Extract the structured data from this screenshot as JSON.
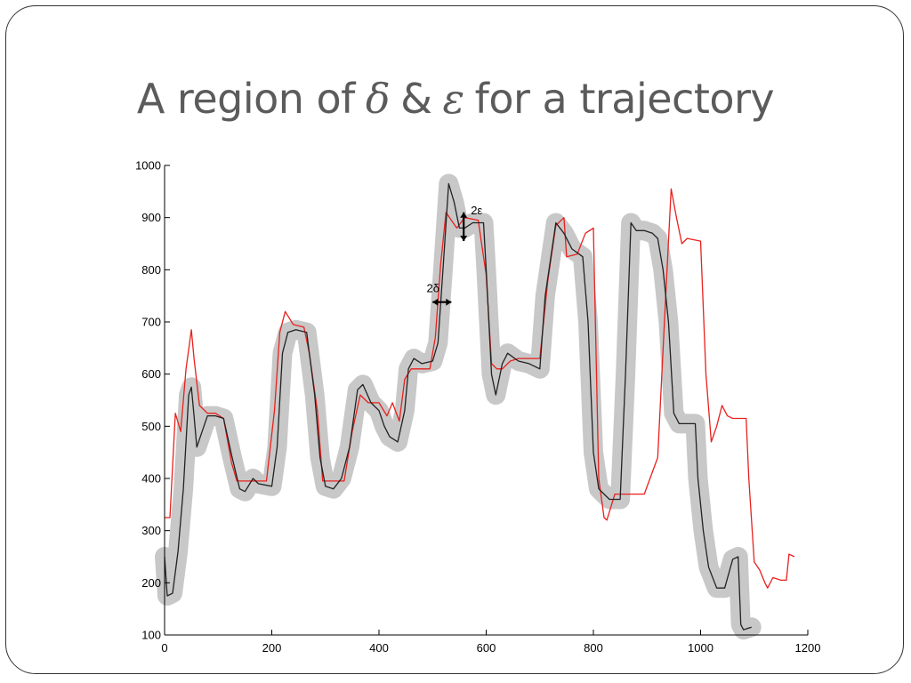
{
  "slide": {
    "title_prefix": "A region of",
    "title_delta": "δ",
    "title_amp": "&",
    "title_epsilon": "ε",
    "title_suffix": "for a trajectory"
  },
  "colors": {
    "band": "#c8c8c8",
    "black_series": "#222222",
    "red_series": "#e8211e",
    "annotation": "#000000"
  },
  "chart_data": {
    "type": "line",
    "title": "",
    "xlabel": "",
    "ylabel": "",
    "xlim": [
      0,
      1200
    ],
    "ylim": [
      100,
      1000
    ],
    "x_ticks": [
      0,
      200,
      400,
      600,
      800,
      1000,
      1200
    ],
    "y_ticks": [
      100,
      200,
      300,
      400,
      500,
      600,
      700,
      800,
      900,
      1000
    ],
    "grid": false,
    "series": [
      {
        "color": "#222222",
        "band_color": "#c8c8c8",
        "points": [
          [
            0,
            250
          ],
          [
            5,
            175
          ],
          [
            15,
            180
          ],
          [
            25,
            260
          ],
          [
            35,
            380
          ],
          [
            45,
            560
          ],
          [
            50,
            575
          ],
          [
            55,
            520
          ],
          [
            60,
            460
          ],
          [
            70,
            490
          ],
          [
            80,
            520
          ],
          [
            95,
            520
          ],
          [
            110,
            515
          ],
          [
            125,
            445
          ],
          [
            140,
            380
          ],
          [
            150,
            375
          ],
          [
            165,
            400
          ],
          [
            175,
            390
          ],
          [
            200,
            385
          ],
          [
            210,
            460
          ],
          [
            220,
            640
          ],
          [
            230,
            680
          ],
          [
            245,
            685
          ],
          [
            265,
            680
          ],
          [
            280,
            560
          ],
          [
            290,
            440
          ],
          [
            300,
            385
          ],
          [
            315,
            380
          ],
          [
            330,
            400
          ],
          [
            345,
            460
          ],
          [
            360,
            570
          ],
          [
            370,
            580
          ],
          [
            385,
            545
          ],
          [
            400,
            530
          ],
          [
            410,
            500
          ],
          [
            420,
            480
          ],
          [
            435,
            470
          ],
          [
            448,
            530
          ],
          [
            455,
            610
          ],
          [
            465,
            630
          ],
          [
            480,
            620
          ],
          [
            500,
            625
          ],
          [
            510,
            660
          ],
          [
            520,
            810
          ],
          [
            530,
            965
          ],
          [
            540,
            930
          ],
          [
            550,
            880
          ],
          [
            560,
            880
          ],
          [
            575,
            890
          ],
          [
            595,
            890
          ],
          [
            600,
            800
          ],
          [
            610,
            600
          ],
          [
            618,
            560
          ],
          [
            630,
            620
          ],
          [
            640,
            640
          ],
          [
            660,
            625
          ],
          [
            680,
            620
          ],
          [
            700,
            610
          ],
          [
            710,
            750
          ],
          [
            720,
            820
          ],
          [
            730,
            890
          ],
          [
            745,
            870
          ],
          [
            760,
            840
          ],
          [
            780,
            825
          ],
          [
            790,
            700
          ],
          [
            800,
            450
          ],
          [
            810,
            380
          ],
          [
            820,
            370
          ],
          [
            830,
            360
          ],
          [
            850,
            360
          ],
          [
            860,
            600
          ],
          [
            870,
            890
          ],
          [
            880,
            875
          ],
          [
            895,
            875
          ],
          [
            910,
            870
          ],
          [
            920,
            860
          ],
          [
            930,
            800
          ],
          [
            940,
            700
          ],
          [
            950,
            525
          ],
          [
            960,
            505
          ],
          [
            975,
            505
          ],
          [
            990,
            505
          ],
          [
            995,
            400
          ],
          [
            1005,
            300
          ],
          [
            1015,
            230
          ],
          [
            1030,
            190
          ],
          [
            1045,
            190
          ],
          [
            1060,
            245
          ],
          [
            1070,
            250
          ],
          [
            1075,
            120
          ],
          [
            1080,
            110
          ],
          [
            1095,
            115
          ]
        ]
      },
      {
        "color": "#e8211e",
        "points": [
          [
            0,
            325
          ],
          [
            10,
            325
          ],
          [
            20,
            525
          ],
          [
            30,
            490
          ],
          [
            40,
            610
          ],
          [
            50,
            685
          ],
          [
            55,
            630
          ],
          [
            65,
            540
          ],
          [
            80,
            525
          ],
          [
            95,
            525
          ],
          [
            110,
            515
          ],
          [
            125,
            430
          ],
          [
            135,
            395
          ],
          [
            160,
            395
          ],
          [
            190,
            395
          ],
          [
            205,
            530
          ],
          [
            215,
            680
          ],
          [
            225,
            720
          ],
          [
            240,
            695
          ],
          [
            260,
            690
          ],
          [
            270,
            640
          ],
          [
            285,
            530
          ],
          [
            295,
            395
          ],
          [
            320,
            395
          ],
          [
            335,
            395
          ],
          [
            350,
            490
          ],
          [
            365,
            560
          ],
          [
            380,
            545
          ],
          [
            400,
            545
          ],
          [
            415,
            520
          ],
          [
            425,
            545
          ],
          [
            438,
            510
          ],
          [
            448,
            590
          ],
          [
            460,
            610
          ],
          [
            495,
            610
          ],
          [
            505,
            670
          ],
          [
            515,
            810
          ],
          [
            525,
            910
          ],
          [
            535,
            895
          ],
          [
            545,
            880
          ],
          [
            560,
            900
          ],
          [
            585,
            895
          ],
          [
            600,
            790
          ],
          [
            610,
            620
          ],
          [
            620,
            610
          ],
          [
            630,
            610
          ],
          [
            645,
            625
          ],
          [
            660,
            630
          ],
          [
            700,
            630
          ],
          [
            715,
            780
          ],
          [
            730,
            885
          ],
          [
            745,
            900
          ],
          [
            750,
            825
          ],
          [
            770,
            830
          ],
          [
            785,
            870
          ],
          [
            800,
            880
          ],
          [
            810,
            400
          ],
          [
            820,
            325
          ],
          [
            825,
            320
          ],
          [
            840,
            370
          ],
          [
            870,
            370
          ],
          [
            880,
            370
          ],
          [
            895,
            370
          ],
          [
            920,
            440
          ],
          [
            935,
            750
          ],
          [
            945,
            955
          ],
          [
            955,
            900
          ],
          [
            965,
            850
          ],
          [
            975,
            860
          ],
          [
            1000,
            855
          ],
          [
            1010,
            600
          ],
          [
            1020,
            470
          ],
          [
            1030,
            500
          ],
          [
            1040,
            540
          ],
          [
            1050,
            520
          ],
          [
            1060,
            515
          ],
          [
            1085,
            515
          ],
          [
            1090,
            400
          ],
          [
            1100,
            240
          ],
          [
            1110,
            225
          ],
          [
            1120,
            200
          ],
          [
            1125,
            190
          ],
          [
            1135,
            210
          ],
          [
            1150,
            205
          ],
          [
            1160,
            205
          ],
          [
            1165,
            255
          ],
          [
            1175,
            250
          ]
        ]
      }
    ],
    "annotations": [
      {
        "label": "2δ",
        "type": "horizontal",
        "x": [
          500,
          535
        ],
        "y": 738
      },
      {
        "label": "2ε",
        "type": "vertical",
        "x": 558,
        "y": [
          855,
          910
        ]
      }
    ]
  }
}
